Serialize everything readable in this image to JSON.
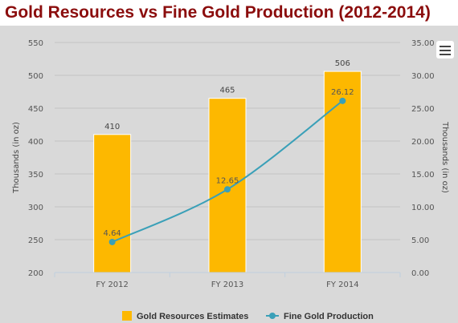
{
  "title": "Gold Resources vs Fine Gold Production (2012-2014)",
  "menu_icon": "hamburger-menu-icon",
  "colors": {
    "bar": "#fdb800",
    "line": "#3aa0b8",
    "title": "#8b0d0d",
    "background": "#d9d9d9"
  },
  "chart_data": {
    "type": "bar+line",
    "categories": [
      "FY 2012",
      "FY 2013",
      "FY 2014"
    ],
    "series": [
      {
        "name": "Gold Resources Estimates",
        "type": "bar",
        "axis": "left",
        "values": [
          410,
          465,
          506
        ],
        "labels": [
          "410",
          "465",
          "506"
        ]
      },
      {
        "name": "Fine Gold Production",
        "type": "line",
        "axis": "right",
        "values": [
          4.64,
          12.65,
          26.12
        ],
        "labels": [
          "4.64",
          "12.65",
          "26.12"
        ]
      }
    ],
    "y_left": {
      "label": "Thousands (in oz)",
      "min": 200,
      "max": 550,
      "ticks": [
        "200",
        "250",
        "300",
        "350",
        "400",
        "450",
        "500",
        "550"
      ]
    },
    "y_right": {
      "label": "Thousands (in oz)",
      "min": 0,
      "max": 35,
      "ticks": [
        "0.00",
        "5.00",
        "10.00",
        "15.00",
        "20.00",
        "25.00",
        "30.00",
        "35.00"
      ]
    },
    "grid": true,
    "legend_position": "bottom-center"
  }
}
